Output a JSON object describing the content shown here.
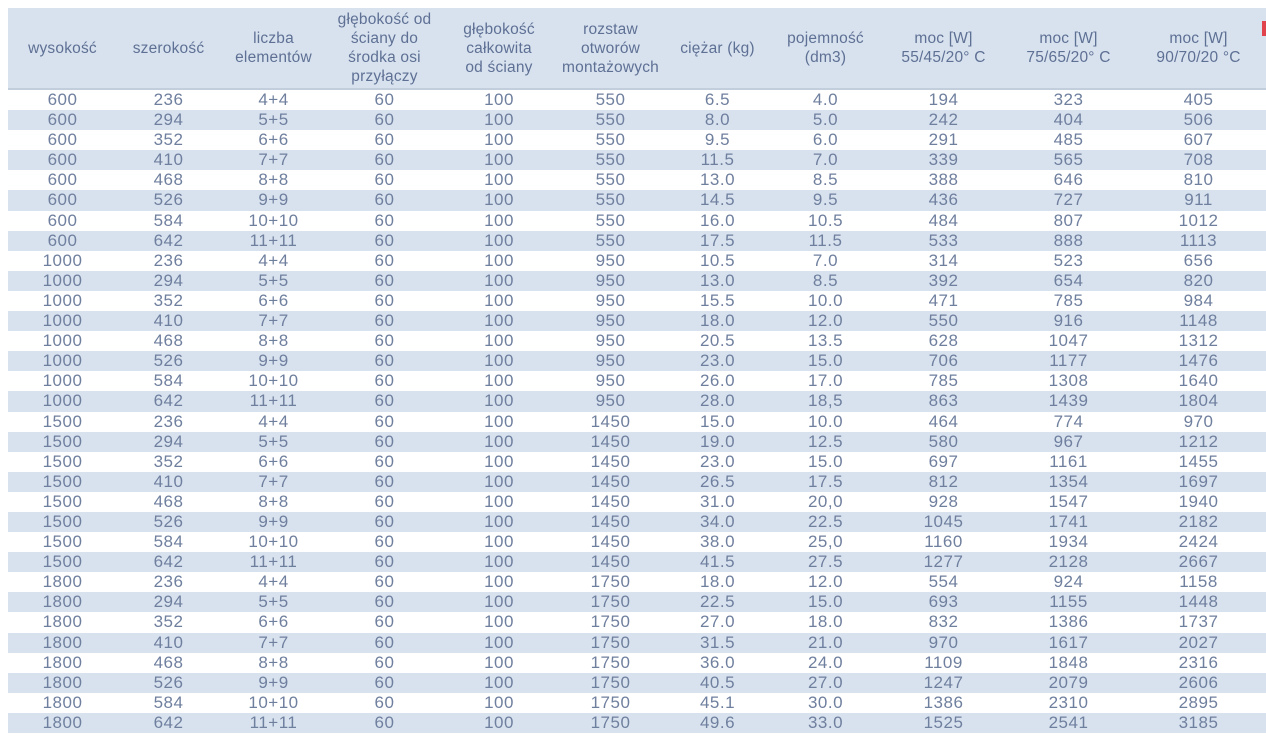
{
  "colors": {
    "band_blue": "#d8e2ef",
    "header_text": "#5e7094",
    "cell_text": "#6f7f9e",
    "header_border": "#c3cedd",
    "red_mark": "#e0434c"
  },
  "table": {
    "columns": [
      {
        "id": "wysokosc",
        "lines": [
          "wysokość"
        ]
      },
      {
        "id": "szerokosc",
        "lines": [
          "szerokość"
        ]
      },
      {
        "id": "liczba-elementow",
        "lines": [
          "liczba",
          "elementów"
        ]
      },
      {
        "id": "glebokosc-od-sciany-do-srodka-osi-przylaczy",
        "lines": [
          "głębokość od",
          "ściany do",
          "środka osi",
          "przyłączy"
        ]
      },
      {
        "id": "glebokosc-calkowita-od-sciany",
        "lines": [
          "głębokość",
          "całkowita",
          "od ściany"
        ]
      },
      {
        "id": "rozstaw-otworow-montazowych",
        "lines": [
          "rozstaw",
          "otworów",
          "montażowych"
        ]
      },
      {
        "id": "ciezar-kg",
        "lines": [
          "ciężar (kg)"
        ]
      },
      {
        "id": "pojemnosc-dm3",
        "lines": [
          "pojemność",
          "(dm3)"
        ]
      },
      {
        "id": "moc-w-55-45-20",
        "lines": [
          "moc [W]",
          "55/45/20° C"
        ]
      },
      {
        "id": "moc-w-75-65-20",
        "lines": [
          "moc [W]",
          "75/65/20° C"
        ]
      },
      {
        "id": "moc-w-90-70-20",
        "lines": [
          "moc [W]",
          "90/70/20 °C"
        ]
      }
    ],
    "rows": [
      [
        "600",
        "236",
        "4+4",
        "60",
        "100",
        "550",
        "6.5",
        "4.0",
        "194",
        "323",
        "405"
      ],
      [
        "600",
        "294",
        "5+5",
        "60",
        "100",
        "550",
        "8.0",
        "5.0",
        "242",
        "404",
        "506"
      ],
      [
        "600",
        "352",
        "6+6",
        "60",
        "100",
        "550",
        "9.5",
        "6.0",
        "291",
        "485",
        "607"
      ],
      [
        "600",
        "410",
        "7+7",
        "60",
        "100",
        "550",
        "11.5",
        "7.0",
        "339",
        "565",
        "708"
      ],
      [
        "600",
        "468",
        "8+8",
        "60",
        "100",
        "550",
        "13.0",
        "8.5",
        "388",
        "646",
        "810"
      ],
      [
        "600",
        "526",
        "9+9",
        "60",
        "100",
        "550",
        "14.5",
        "9.5",
        "436",
        "727",
        "911"
      ],
      [
        "600",
        "584",
        "10+10",
        "60",
        "100",
        "550",
        "16.0",
        "10.5",
        "484",
        "807",
        "1012"
      ],
      [
        "600",
        "642",
        "11+11",
        "60",
        "100",
        "550",
        "17.5",
        "11.5",
        "533",
        "888",
        "1113"
      ],
      [
        "1000",
        "236",
        "4+4",
        "60",
        "100",
        "950",
        "10.5",
        "7.0",
        "314",
        "523",
        "656"
      ],
      [
        "1000",
        "294",
        "5+5",
        "60",
        "100",
        "950",
        "13.0",
        "8.5",
        "392",
        "654",
        "820"
      ],
      [
        "1000",
        "352",
        "6+6",
        "60",
        "100",
        "950",
        "15.5",
        "10.0",
        "471",
        "785",
        "984"
      ],
      [
        "1000",
        "410",
        "7+7",
        "60",
        "100",
        "950",
        "18.0",
        "12.0",
        "550",
        "916",
        "1148"
      ],
      [
        "1000",
        "468",
        "8+8",
        "60",
        "100",
        "950",
        "20.5",
        "13.5",
        "628",
        "1047",
        "1312"
      ],
      [
        "1000",
        "526",
        "9+9",
        "60",
        "100",
        "950",
        "23.0",
        "15.0",
        "706",
        "1177",
        "1476"
      ],
      [
        "1000",
        "584",
        "10+10",
        "60",
        "100",
        "950",
        "26.0",
        "17.0",
        "785",
        "1308",
        "1640"
      ],
      [
        "1000",
        "642",
        "11+11",
        "60",
        "100",
        "950",
        "28.0",
        "18,5",
        "863",
        "1439",
        "1804"
      ],
      [
        "1500",
        "236",
        "4+4",
        "60",
        "100",
        "1450",
        "15.0",
        "10.0",
        "464",
        "774",
        "970"
      ],
      [
        "1500",
        "294",
        "5+5",
        "60",
        "100",
        "1450",
        "19.0",
        "12.5",
        "580",
        "967",
        "1212"
      ],
      [
        "1500",
        "352",
        "6+6",
        "60",
        "100",
        "1450",
        "23.0",
        "15.0",
        "697",
        "1161",
        "1455"
      ],
      [
        "1500",
        "410",
        "7+7",
        "60",
        "100",
        "1450",
        "26.5",
        "17.5",
        "812",
        "1354",
        "1697"
      ],
      [
        "1500",
        "468",
        "8+8",
        "60",
        "100",
        "1450",
        "31.0",
        "20,0",
        "928",
        "1547",
        "1940"
      ],
      [
        "1500",
        "526",
        "9+9",
        "60",
        "100",
        "1450",
        "34.0",
        "22.5",
        "1045",
        "1741",
        "2182"
      ],
      [
        "1500",
        "584",
        "10+10",
        "60",
        "100",
        "1450",
        "38.0",
        "25,0",
        "1160",
        "1934",
        "2424"
      ],
      [
        "1500",
        "642",
        "11+11",
        "60",
        "100",
        "1450",
        "41.5",
        "27.5",
        "1277",
        "2128",
        "2667"
      ],
      [
        "1800",
        "236",
        "4+4",
        "60",
        "100",
        "1750",
        "18.0",
        "12.0",
        "554",
        "924",
        "1158"
      ],
      [
        "1800",
        "294",
        "5+5",
        "60",
        "100",
        "1750",
        "22.5",
        "15.0",
        "693",
        "1155",
        "1448"
      ],
      [
        "1800",
        "352",
        "6+6",
        "60",
        "100",
        "1750",
        "27.0",
        "18.0",
        "832",
        "1386",
        "1737"
      ],
      [
        "1800",
        "410",
        "7+7",
        "60",
        "100",
        "1750",
        "31.5",
        "21.0",
        "970",
        "1617",
        "2027"
      ],
      [
        "1800",
        "468",
        "8+8",
        "60",
        "100",
        "1750",
        "36.0",
        "24.0",
        "1109",
        "1848",
        "2316"
      ],
      [
        "1800",
        "526",
        "9+9",
        "60",
        "100",
        "1750",
        "40.5",
        "27.0",
        "1247",
        "2079",
        "2606"
      ],
      [
        "1800",
        "584",
        "10+10",
        "60",
        "100",
        "1750",
        "45.1",
        "30.0",
        "1386",
        "2310",
        "2895"
      ],
      [
        "1800",
        "642",
        "11+11",
        "60",
        "100",
        "1750",
        "49.6",
        "33.0",
        "1525",
        "2541",
        "3185"
      ]
    ]
  }
}
